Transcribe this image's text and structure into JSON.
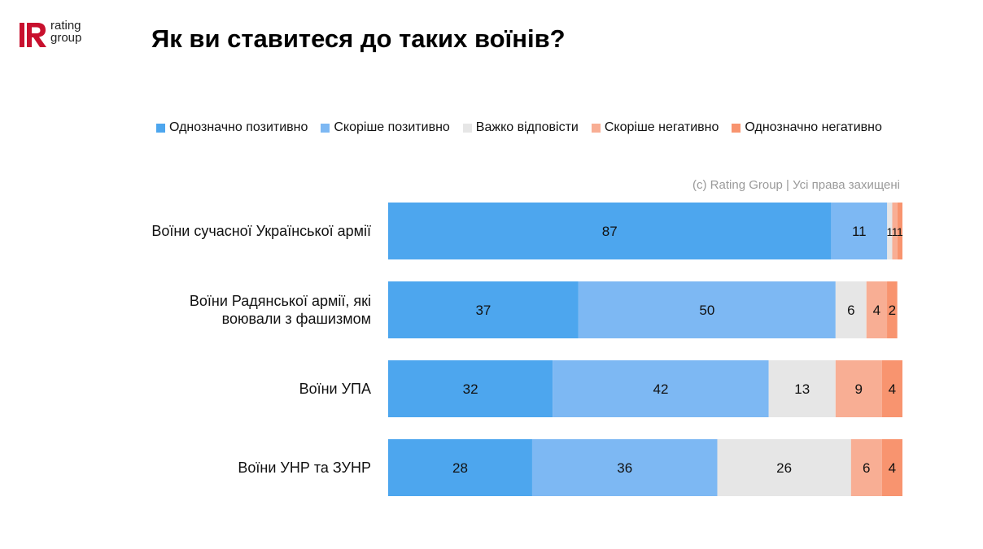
{
  "brand": {
    "logo_letter": "R",
    "logo_line1": "rating",
    "logo_line2": "group",
    "brand_color": "#c8102e"
  },
  "title": "Як ви ставитеся до таких воїнів?",
  "copyright": "(c) Rating Group | Усі права захищені",
  "chart_data": {
    "type": "bar",
    "orientation": "horizontal",
    "stacked": true,
    "title": "Як ви ставитеся до таких воїнів?",
    "xlim": [
      0,
      100
    ],
    "grid": false,
    "legend_position": "top",
    "categories": [
      [
        "Воїни сучасної Української армії"
      ],
      [
        "Воїни Радянської армії, які",
        "воювали з фашизмом"
      ],
      [
        "Воїни УПА"
      ],
      [
        "Воїни УНР та ЗУНР"
      ]
    ],
    "series": [
      {
        "name": "Однозначно позитивно",
        "color": "#4da6ee",
        "values": [
          87,
          37,
          32,
          28
        ]
      },
      {
        "name": "Скоріше позитивно",
        "color": "#7db8f3",
        "values": [
          11,
          50,
          42,
          36
        ]
      },
      {
        "name": "Важко відповісти",
        "color": "#e6e6e6",
        "values": [
          1,
          6,
          13,
          26
        ]
      },
      {
        "name": "Скоріше негативно",
        "color": "#f8ae94",
        "values": [
          1,
          4,
          9,
          6
        ]
      },
      {
        "name": "Однозначно негативно",
        "color": "#f8946f",
        "values": [
          1,
          2,
          4,
          4
        ]
      }
    ]
  }
}
